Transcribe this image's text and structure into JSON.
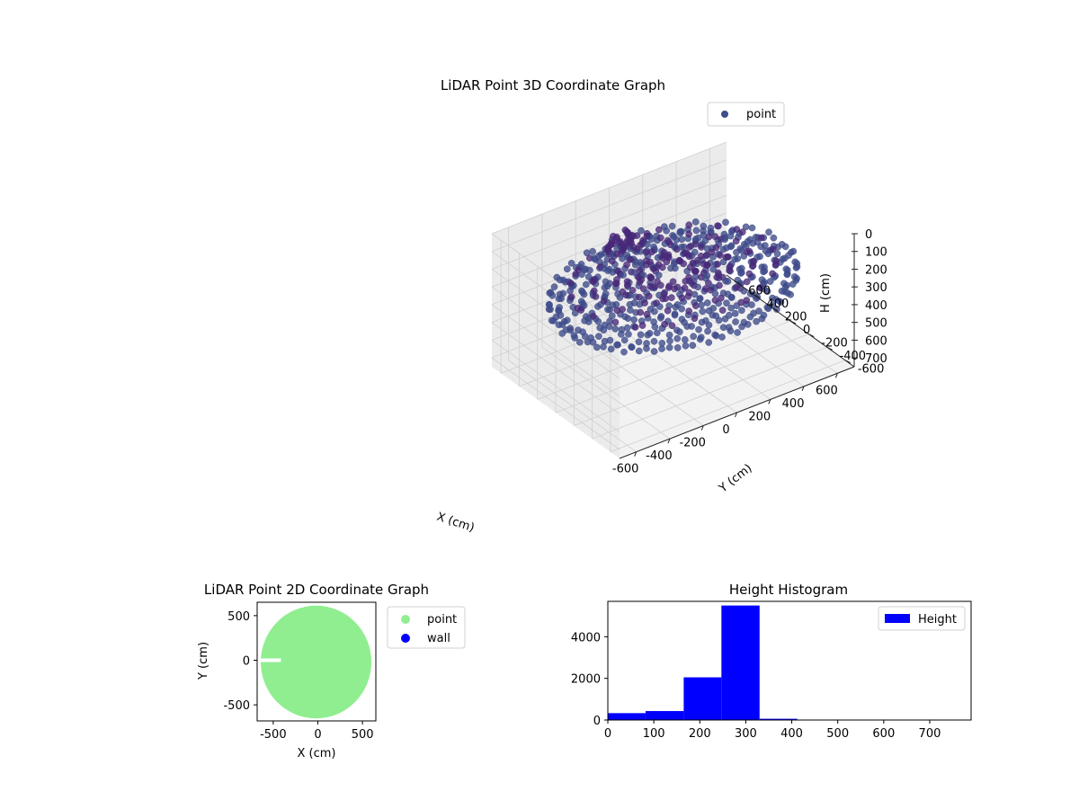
{
  "chart_data": [
    {
      "type": "scatter",
      "title": "LiDAR Point 3D Coordinate Graph",
      "xlabel": "X (cm)",
      "ylabel": "Y (cm)",
      "zlabel": "H (cm)",
      "xlim": [
        -700,
        700
      ],
      "ylim": [
        -700,
        700
      ],
      "zlim": [
        750,
        0
      ],
      "xticks": [
        "-600",
        "-400",
        "-200",
        "0",
        "200",
        "400",
        "600"
      ],
      "yticks": [
        "-600",
        "-400",
        "-200",
        "0",
        "200",
        "400",
        "600"
      ],
      "zticks": [
        "0",
        "100",
        "200",
        "300",
        "400",
        "500",
        "600",
        "700"
      ],
      "z_axis_inverted": true,
      "grid": true,
      "legend": {
        "placement": "top-right",
        "entries": [
          {
            "label": "point",
            "color": "#3b4f8a"
          }
        ]
      },
      "colormap": "viridis",
      "series": [
        {
          "name": "point",
          "description_points": [
            {
              "ring_radius": 650,
              "height": 300
            },
            {
              "ring_radius": 600,
              "height": 320
            },
            {
              "ring_radius": 540,
              "height": 260
            },
            {
              "ring_radius": 480,
              "height": 300
            },
            {
              "ring_radius": 420,
              "height": 250
            },
            {
              "ring_radius": 360,
              "height": 280
            },
            {
              "ring_radius": 300,
              "height": 240
            },
            {
              "ring_radius": 240,
              "height": 260
            },
            {
              "ring_radius": 180,
              "height": 230
            },
            {
              "ring_radius": 120,
              "height": 240
            }
          ],
          "cluster": {
            "x": -50,
            "y": 450,
            "height_range": [
              150,
              260
            ]
          }
        }
      ]
    },
    {
      "type": "scatter",
      "title": "LiDAR Point 2D Coordinate Graph",
      "xlabel": "X (cm)",
      "ylabel": "Y (cm)",
      "xlim": [
        -680,
        650
      ],
      "ylim": [
        -680,
        650
      ],
      "xticks": [
        -500,
        0,
        500
      ],
      "yticks": [
        -500,
        0,
        500
      ],
      "legend": {
        "placement": "outside-right",
        "entries": [
          {
            "label": "point",
            "color": "#90ee90"
          },
          {
            "label": "wall",
            "color": "#0000ff"
          }
        ]
      },
      "series": [
        {
          "name": "point",
          "color": "#90ee90",
          "shape": "disc",
          "center": [
            -20,
            -20
          ],
          "radius": 620
        },
        {
          "name": "wall",
          "color": "#0000ff",
          "points": []
        }
      ]
    },
    {
      "type": "bar",
      "title": "Height Histogram",
      "xlim": [
        0,
        790
      ],
      "ylim": [
        0,
        5700
      ],
      "xticks": [
        0,
        100,
        200,
        300,
        400,
        500,
        600,
        700
      ],
      "yticks": [
        0,
        2000,
        4000
      ],
      "legend": {
        "placement": "top-right",
        "entries": [
          {
            "label": "Height",
            "color": "#0000ff"
          }
        ]
      },
      "bins": [
        {
          "x0": 0,
          "x1": 82,
          "value": 330
        },
        {
          "x0": 82,
          "x1": 165,
          "value": 430
        },
        {
          "x0": 165,
          "x1": 247,
          "value": 2050
        },
        {
          "x0": 247,
          "x1": 330,
          "value": 5500
        },
        {
          "x0": 330,
          "x1": 412,
          "value": 60
        },
        {
          "x0": 412,
          "x1": 495,
          "value": 10
        },
        {
          "x0": 495,
          "x1": 577,
          "value": 5
        },
        {
          "x0": 577,
          "x1": 660,
          "value": 3
        },
        {
          "x0": 660,
          "x1": 742,
          "value": 2
        }
      ]
    }
  ]
}
